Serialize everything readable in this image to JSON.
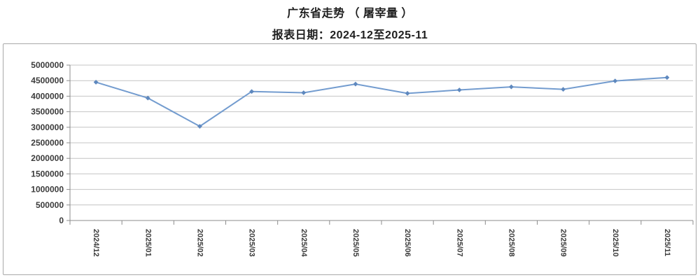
{
  "chart": {
    "title": "广东省走势 （ 屠宰量 ）",
    "subtitle": "报表日期：2024-12至2025-11"
  },
  "chart_data": {
    "type": "line",
    "title": "广东省走势 （ 屠宰量 ）",
    "subtitle": "报表日期：2024-12至2025-11",
    "xlabel": "",
    "ylabel": "",
    "categories": [
      "2024/12",
      "2025/01",
      "2025/02",
      "2025/03",
      "2025/04",
      "2025/05",
      "2025/06",
      "2025/07",
      "2025/08",
      "2025/09",
      "2025/10",
      "2025/11"
    ],
    "series": [
      {
        "name": "屠宰量",
        "values": [
          4450000,
          3940000,
          3030000,
          4150000,
          4110000,
          4390000,
          4090000,
          4200000,
          4300000,
          4220000,
          4490000,
          4600000
        ]
      }
    ],
    "ylim": [
      0,
      5000000
    ],
    "ytick_step": 500000,
    "yticks": [
      0,
      500000,
      1000000,
      1500000,
      2000000,
      2500000,
      3000000,
      3500000,
      4000000,
      4500000,
      5000000
    ],
    "grid": true,
    "legend": false,
    "x_label_rotation_deg": 90,
    "colors": {
      "line": "#739ccf",
      "marker": "#5e88be",
      "gridline": "#c4c4c4",
      "axis": "#8c8c8c",
      "tick_label": "#3b3b3b",
      "border": "#a9a9a9",
      "background": "#ffffff"
    }
  }
}
